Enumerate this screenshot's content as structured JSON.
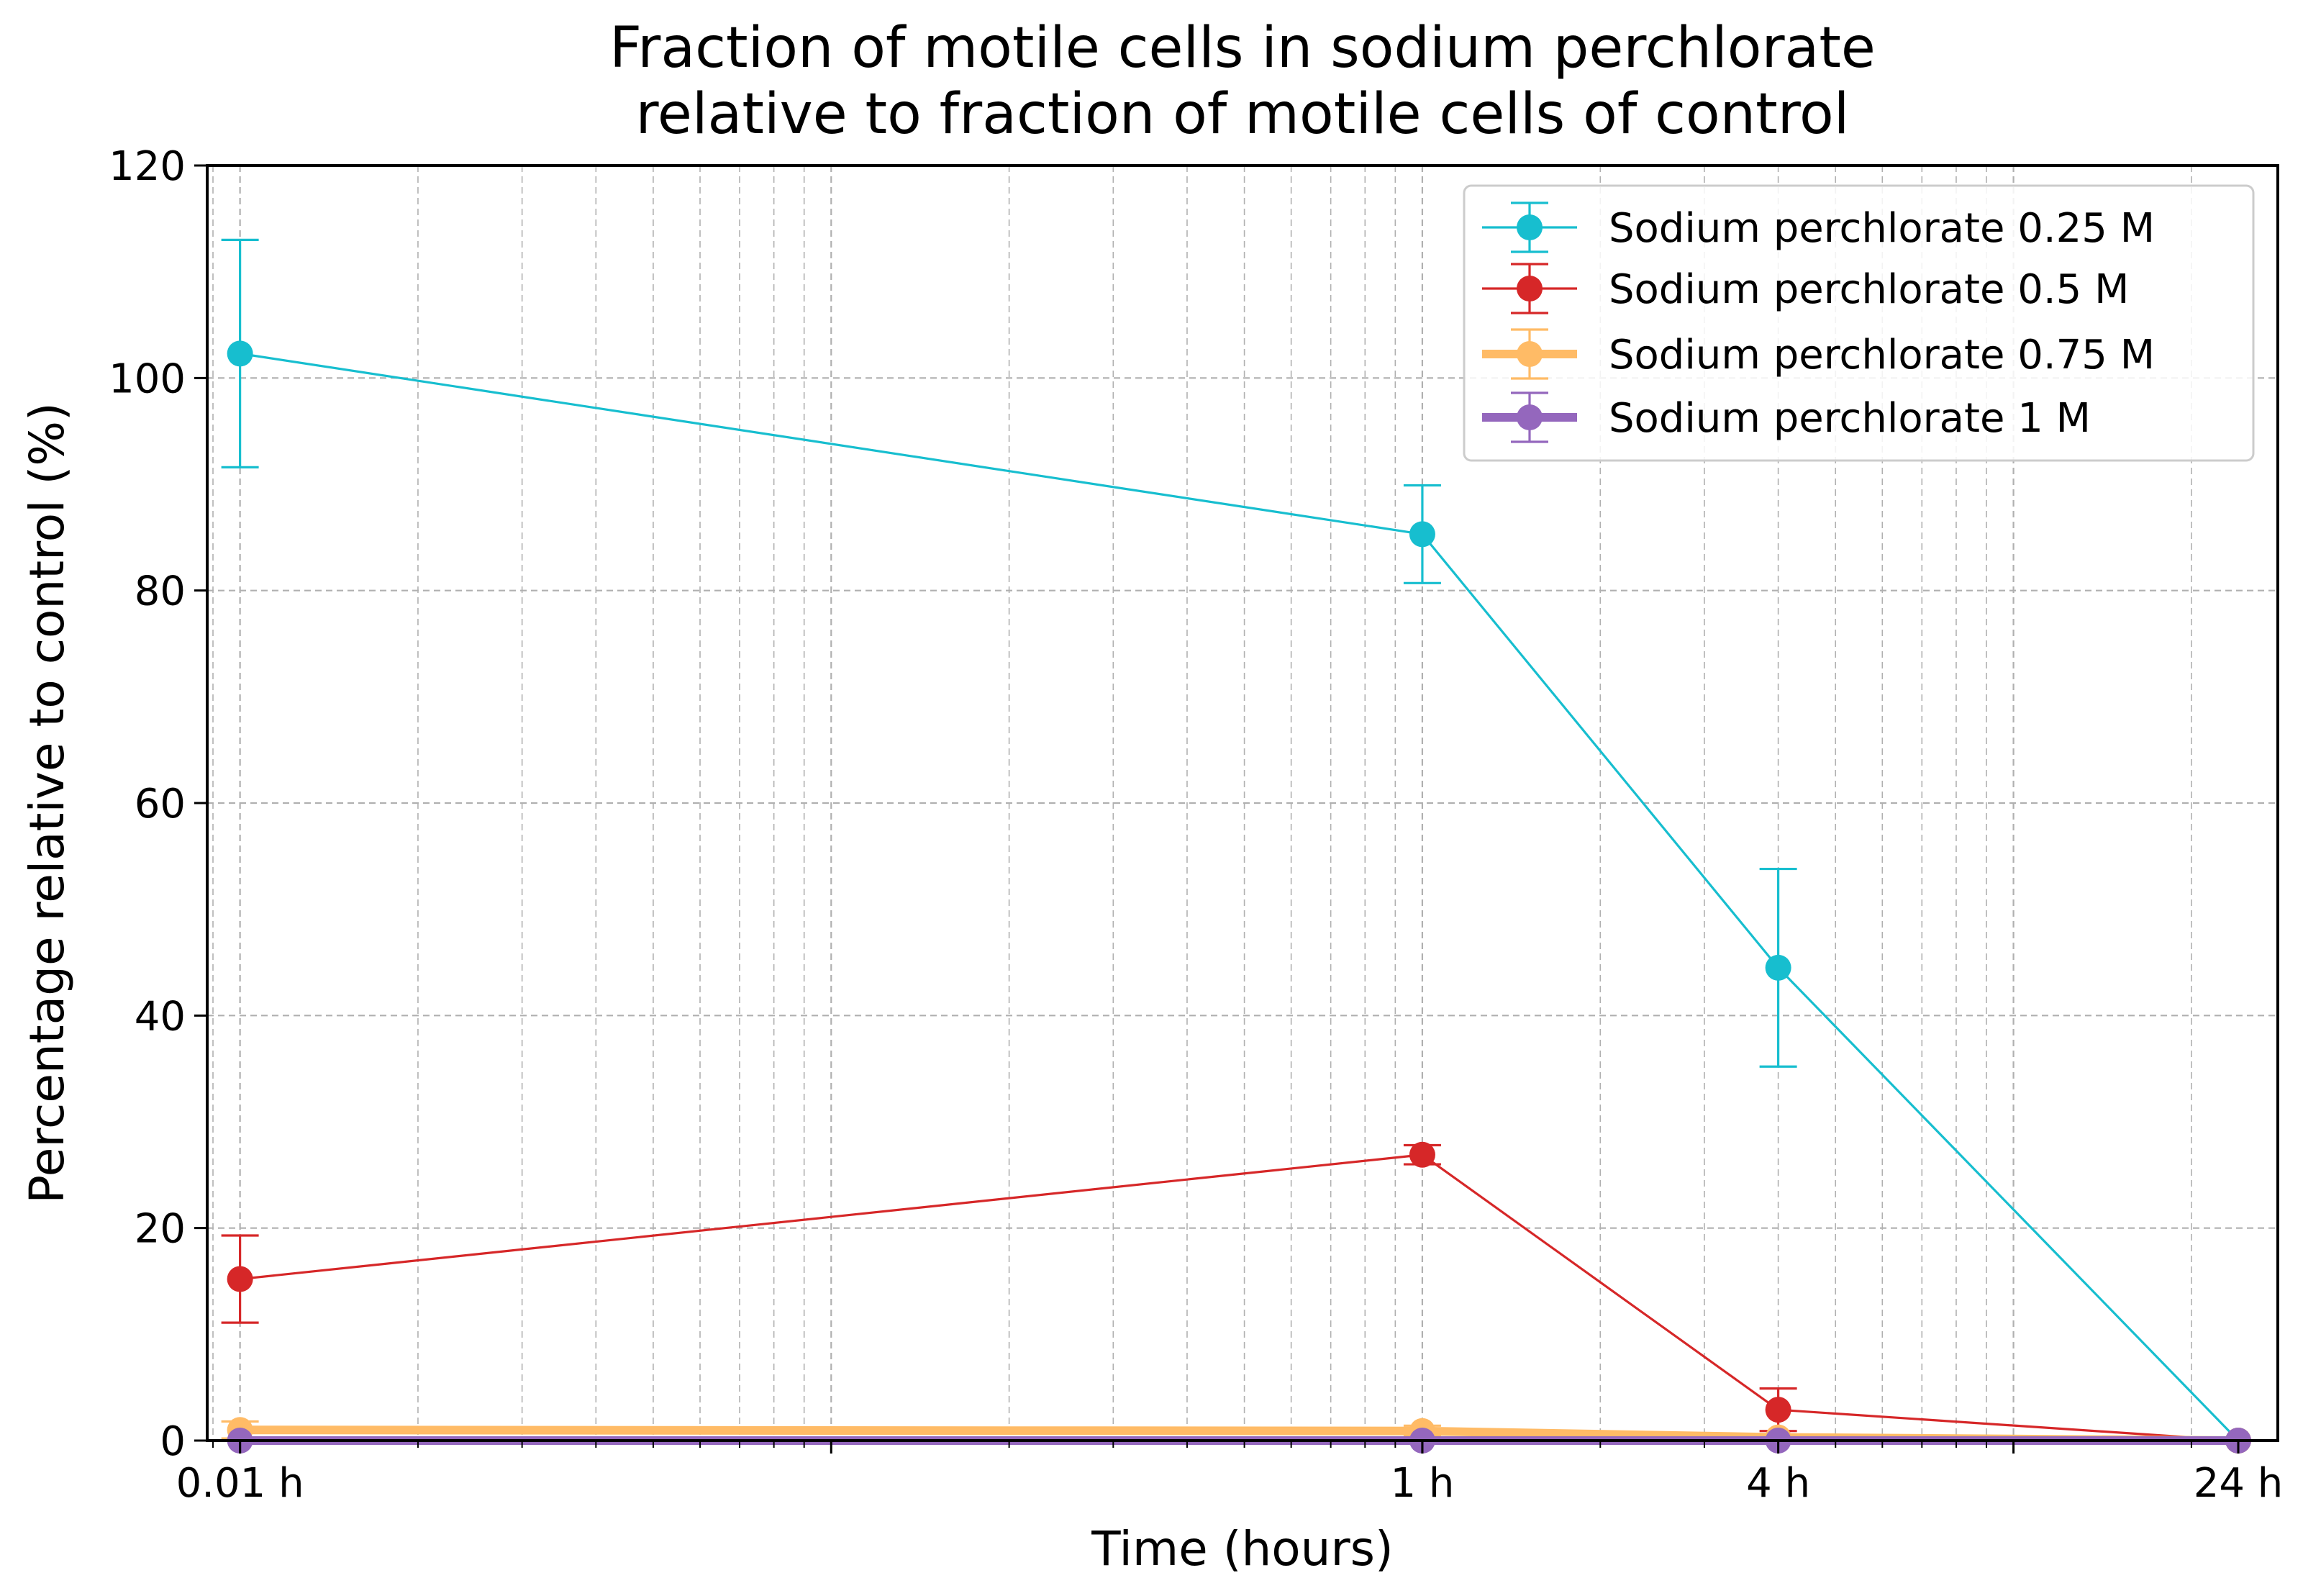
{
  "chart_data": {
    "type": "line",
    "title": [
      "Fraction of motile cells in sodium perchlorate",
      "relative to fraction of motile cells of control"
    ],
    "xlabel": "Time (hours)",
    "ylabel": "Percentage relative to control (%)",
    "xscale": "log",
    "xlim": [
      0.0088,
      28
    ],
    "ylim": [
      0,
      120
    ],
    "x": [
      0.01,
      1,
      4,
      24
    ],
    "xtick_labels": [
      "0.01 h",
      "1 h",
      "4 h",
      "24 h"
    ],
    "yticks": [
      0,
      20,
      40,
      60,
      80,
      100,
      120
    ],
    "ytick_labels": [
      "0",
      "20",
      "40",
      "60",
      "80",
      "100",
      "120"
    ],
    "grid": true,
    "legend_position": "top-right",
    "series": [
      {
        "name": "Sodium perchlorate 0.25 M",
        "color": "#17becf",
        "line_style": "thin",
        "values": [
          102.3,
          85.3,
          44.5,
          0
        ],
        "errors": [
          10.7,
          4.6,
          9.3,
          0
        ]
      },
      {
        "name": "Sodium perchlorate 0.5 M",
        "color": "#d62728",
        "line_style": "thin",
        "values": [
          15.2,
          26.9,
          2.9,
          0
        ],
        "errors": [
          4.1,
          0.9,
          2.0,
          0
        ]
      },
      {
        "name": "Sodium perchlorate 0.75 M",
        "color": "#ffbb66",
        "line_style": "thick",
        "values": [
          1.0,
          0.9,
          0.3,
          0
        ],
        "errors": [
          0.8,
          0.5,
          0.2,
          0
        ]
      },
      {
        "name": "Sodium perchlorate 1 M",
        "color": "#9467bd",
        "line_style": "thick",
        "values": [
          0,
          0,
          0,
          0
        ],
        "errors": [
          0,
          0,
          0,
          0
        ]
      }
    ]
  }
}
